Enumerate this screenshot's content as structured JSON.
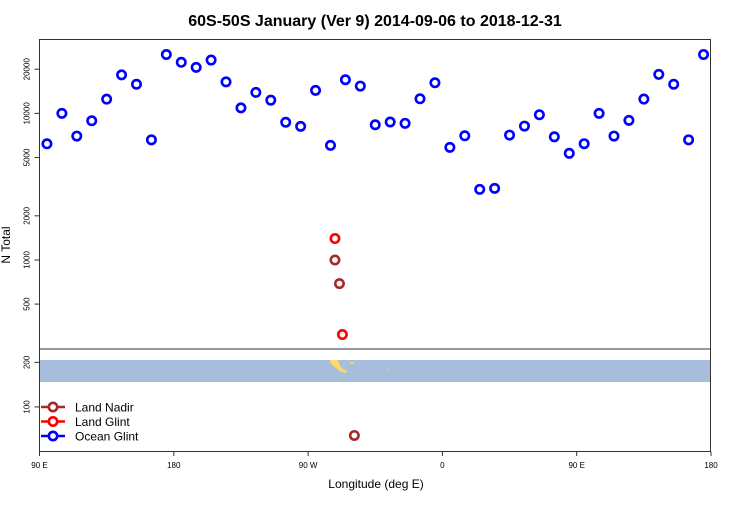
{
  "chart_data": {
    "type": "scatter",
    "title": "60S-50S January (Ver 9)   2014-09-06 to 2018-12-31",
    "xlabel": "Longitude (deg E)",
    "ylabel": "N Total",
    "x_ticks": [
      "90 E",
      "180",
      "90 W",
      "0",
      "90 E",
      "180"
    ],
    "x_tick_values": [
      90,
      180,
      -90,
      0,
      90,
      180
    ],
    "x_range": [
      "90 E",
      "180 (after one full wrap)"
    ],
    "upper_panel": {
      "scale": "log",
      "ylim": [
        247,
        31900
      ],
      "y_ticks": [
        500,
        1000,
        2000,
        5000,
        10000,
        20000
      ]
    },
    "lower_panel": {
      "scale": "linear",
      "ylim": [
        0,
        230
      ],
      "y_ticks": [
        100,
        200
      ]
    },
    "legend": {
      "placement": "bottom-left",
      "entries": [
        "Land Nadir",
        "Land Glint",
        "Ocean Glint"
      ]
    },
    "colors": {
      "Land Nadir": "#a52a2a",
      "Land Glint": "#ff0000",
      "Ocean Glint": "#0000ff",
      "map_ocean": "#a6bddb",
      "map_land": "#ffd966"
    },
    "series": [
      {
        "name": "Ocean Glint",
        "x": [
          95,
          105,
          115,
          125,
          135,
          145,
          155,
          165,
          175,
          -175,
          -165,
          -155,
          -145,
          -135,
          -125,
          -115,
          -105,
          -95,
          -85,
          -75,
          -65,
          -55,
          -45,
          -35,
          -25,
          -15,
          -5,
          5,
          15,
          25,
          35,
          45,
          55,
          65,
          75,
          85,
          95,
          105,
          115,
          125,
          135,
          145,
          155,
          165,
          175
        ],
        "y": [
          6200,
          10000,
          7000,
          8900,
          12500,
          18300,
          15800,
          6600,
          25200,
          22300,
          20600,
          23100,
          16400,
          10900,
          13900,
          12300,
          8700,
          8150,
          14350,
          6050,
          16950,
          15350,
          8360,
          8730,
          8550,
          12570,
          16170,
          5860,
          7030,
          3030,
          3080,
          7110,
          8190,
          9780,
          6920,
          5340,
          6210,
          10000,
          7000,
          8960,
          12520,
          18450,
          15800,
          6600,
          25200
        ]
      },
      {
        "name": "Land Glint",
        "x": [
          -72,
          -67
        ],
        "y": [
          1400,
          310
        ]
      },
      {
        "name": "Land Nadir",
        "x": [
          -72,
          -69,
          -59
        ],
        "y": [
          1000,
          690,
          36
        ]
      }
    ]
  }
}
